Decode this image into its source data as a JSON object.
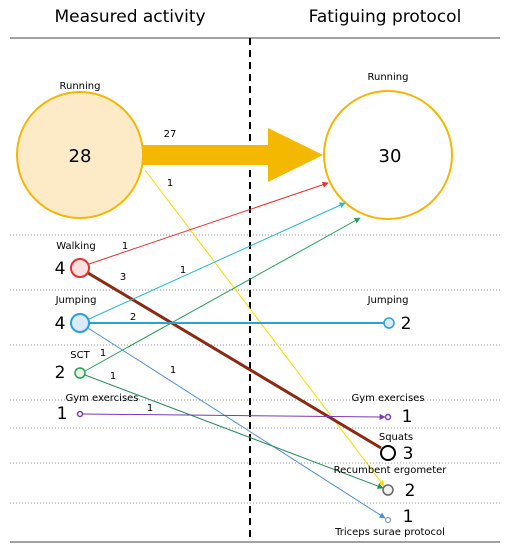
{
  "header": {
    "left": "Measured activity",
    "right": "Fatiguing protocol"
  },
  "left_nodes": [
    {
      "label": "Running",
      "count": 28
    },
    {
      "label": "Walking",
      "count": 4
    },
    {
      "label": "Jumping",
      "count": 4
    },
    {
      "label": "SCT",
      "count": 2
    },
    {
      "label": "Gym exercises",
      "count": 1
    }
  ],
  "right_nodes": [
    {
      "label": "Running",
      "count": 30
    },
    {
      "label": "Jumping",
      "count": 2
    },
    {
      "label": "Gym exercises",
      "count": 1
    },
    {
      "label": "Squats",
      "count": 3
    },
    {
      "label": "Recumbent ergometer",
      "count": 2
    },
    {
      "label": "Triceps surae protocol",
      "count": 1
    }
  ],
  "flows": [
    {
      "value": 27
    },
    {
      "value": 1
    },
    {
      "value": 1
    },
    {
      "value": 3
    },
    {
      "value": 1
    },
    {
      "value": 2
    },
    {
      "value": 1
    },
    {
      "value": 1
    },
    {
      "value": 1
    },
    {
      "value": 1
    }
  ]
}
